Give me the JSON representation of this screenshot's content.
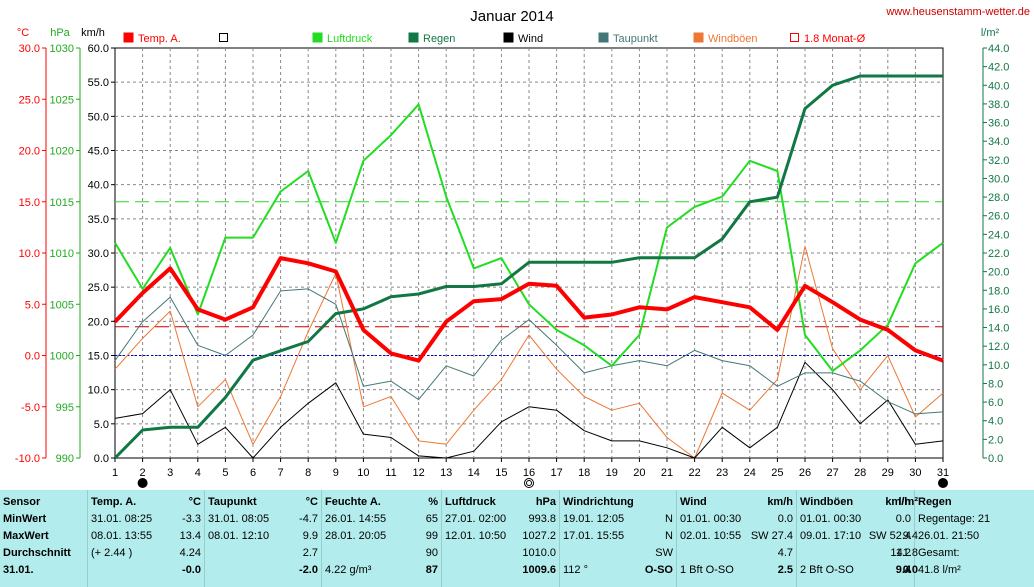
{
  "chart_data": {
    "type": "line",
    "title": "Januar 2014",
    "watermark": "www.heusenstamm-wetter.de",
    "axes": {
      "temp": {
        "unit": "°C",
        "range": [
          -10,
          30
        ],
        "ticks": [
          "30.0",
          "25.0",
          "20.0",
          "15.0",
          "10.0",
          "5.0",
          "0.0",
          "-5.0",
          "-10.0"
        ]
      },
      "pressure": {
        "unit": "hPa",
        "range": [
          990,
          1030
        ],
        "ticks": [
          "1030",
          "1025",
          "1020",
          "1015",
          "1010",
          "1005",
          "1000",
          "995",
          "990"
        ]
      },
      "wind": {
        "unit": "km/h",
        "range": [
          0,
          60
        ],
        "ticks": [
          "60.0",
          "55.0",
          "50.0",
          "45.0",
          "40.0",
          "35.0",
          "30.0",
          "25.0",
          "20.0",
          "15.0",
          "10.0",
          "5.0",
          "0.0"
        ]
      },
      "rain": {
        "unit": "l/m²",
        "range": [
          0,
          44
        ],
        "ticks": [
          "44.0",
          "42.0",
          "40.0",
          "38.0",
          "36.0",
          "34.0",
          "32.0",
          "30.0",
          "28.0",
          "26.0",
          "24.0",
          "22.0",
          "20.0",
          "18.0",
          "16.0",
          "14.0",
          "12.0",
          "10.0",
          "8.0",
          "6.0",
          "4.0",
          "2.0",
          "0.0"
        ]
      }
    },
    "x": [
      "1",
      "2",
      "3",
      "4",
      "5",
      "6",
      "7",
      "8",
      "9",
      "10",
      "11",
      "12",
      "13",
      "14",
      "15",
      "16",
      "17",
      "18",
      "19",
      "20",
      "21",
      "22",
      "23",
      "24",
      "25",
      "26",
      "27",
      "28",
      "29",
      "30",
      "31"
    ],
    "grid": true,
    "legend": [
      {
        "name": "Temp. A.",
        "color": "#ff0000",
        "style": "filled"
      },
      {
        "name": "",
        "color": "#000000",
        "style": "outline"
      },
      {
        "name": "Luftdruck",
        "color": "#22dd22",
        "style": "filled"
      },
      {
        "name": "Regen",
        "color": "#117744",
        "style": "filled"
      },
      {
        "name": "Wind",
        "color": "#000000",
        "style": "filled"
      },
      {
        "name": "Taupunkt",
        "color": "#447777",
        "style": "filled"
      },
      {
        "name": "Windböen",
        "color": "#ee7733",
        "style": "filled"
      },
      {
        "name": "1.8 Monat-Ø",
        "color": "#ff0000",
        "style": "outline"
      }
    ],
    "series": [
      {
        "name": "Temp. A.",
        "axis": "temp",
        "color": "#ff0000",
        "width": 4,
        "values": [
          3.3,
          6.1,
          8.5,
          4.5,
          3.5,
          4.7,
          9.5,
          9.0,
          8.2,
          2.5,
          0.2,
          -0.5,
          3.3,
          5.3,
          5.5,
          7.0,
          6.8,
          3.7,
          4.0,
          4.7,
          4.5,
          5.7,
          5.2,
          4.7,
          2.5,
          6.8,
          5.2,
          3.5,
          2.5,
          0.5,
          -0.5
        ]
      },
      {
        "name": "Luftdruck",
        "axis": "pressure",
        "color": "#22dd22",
        "width": 2,
        "values": [
          1011.0,
          1006.5,
          1010.5,
          1004.0,
          1011.5,
          1011.5,
          1016.0,
          1018.0,
          1011.0,
          1019.0,
          1021.5,
          1024.5,
          1015.5,
          1008.5,
          1009.5,
          1005.0,
          1002.5,
          1001.0,
          999.0,
          1002.0,
          1012.5,
          1014.5,
          1015.5,
          1019.0,
          1018.0,
          1002.0,
          998.5,
          1000.5,
          1003.0,
          1009.0,
          1011.0
        ]
      },
      {
        "name": "Regen",
        "axis": "rain",
        "color": "#117744",
        "width": 3,
        "values": [
          0.0,
          3.0,
          3.3,
          3.3,
          6.5,
          10.5,
          11.5,
          12.5,
          15.5,
          16.0,
          17.3,
          17.6,
          18.4,
          18.4,
          18.7,
          21.0,
          21.0,
          21.0,
          21.0,
          21.5,
          21.5,
          21.5,
          23.5,
          27.5,
          28.0,
          37.5,
          40.0,
          41.0,
          41.0,
          41.0,
          41.0
        ]
      },
      {
        "name": "Wind",
        "axis": "wind",
        "color": "#000000",
        "width": 1,
        "values": [
          5.8,
          6.5,
          10.0,
          2.0,
          4.5,
          0.0,
          4.5,
          8.0,
          11.0,
          3.5,
          3.0,
          0.3,
          0.0,
          1.0,
          5.3,
          7.5,
          7.0,
          4.0,
          2.5,
          2.5,
          1.5,
          0.0,
          4.5,
          1.5,
          4.5,
          14.0,
          10.0,
          5.0,
          8.5,
          2.0,
          2.5
        ]
      },
      {
        "name": "Taupunkt",
        "axis": "temp",
        "color": "#447777",
        "width": 1,
        "values": [
          -0.5,
          3.3,
          5.7,
          1.0,
          0.0,
          2.0,
          6.3,
          6.5,
          5.0,
          -3.0,
          -2.5,
          -4.3,
          -1.0,
          -2.0,
          1.5,
          3.5,
          1.0,
          -1.7,
          -1.0,
          -0.5,
          -1.0,
          0.5,
          -0.5,
          -1.0,
          -3.0,
          -1.7,
          -1.7,
          -2.5,
          -4.5,
          -5.7,
          -5.5
        ]
      },
      {
        "name": "Windböen",
        "axis": "wind",
        "color": "#ee7733",
        "width": 1,
        "values": [
          13.0,
          17.5,
          21.5,
          7.5,
          11.5,
          2.0,
          9.0,
          18.5,
          27.0,
          7.5,
          9.0,
          2.5,
          2.0,
          7.0,
          11.5,
          18.0,
          13.0,
          9.0,
          7.0,
          8.0,
          3.0,
          0.0,
          9.5,
          7.0,
          11.5,
          31.0,
          16.0,
          10.0,
          15.0,
          6.0,
          9.5
        ]
      }
    ],
    "reference_lines": [
      {
        "name": "1.8 Monat-Ø",
        "axis": "temp",
        "value": 2.8,
        "color": "#cc0000",
        "dash": "14,6"
      },
      {
        "name": "pressure-reference",
        "axis": "pressure",
        "value": 1015,
        "color": "#22dd22",
        "dash": "14,6"
      },
      {
        "name": "zero-line",
        "axis": "temp",
        "value": 0,
        "color": "#0000cc",
        "dash": "2,2"
      }
    ],
    "moon_markers": [
      {
        "day": 2,
        "phase": "new"
      },
      {
        "day": 16,
        "phase": "full"
      },
      {
        "day": 31,
        "phase": "new"
      }
    ]
  },
  "table": {
    "row_labels": [
      "Sensor",
      "MinWert",
      "MaxWert",
      "Durchschnitt",
      "31.01."
    ],
    "columns": [
      {
        "title": "Temp. A.",
        "unit": "°C",
        "rows": [
          [
            "31.01.  08:25",
            "-3.3"
          ],
          [
            "08.01.  13:55",
            "13.4"
          ],
          [
            "(+ 2.44 )",
            "4.24"
          ],
          [
            "",
            "-0.0"
          ]
        ]
      },
      {
        "title": "Taupunkt",
        "unit": "°C",
        "rows": [
          [
            "31.01.  08:05",
            "-4.7"
          ],
          [
            "08.01.  12:10",
            "9.9"
          ],
          [
            "",
            "2.7"
          ],
          [
            "",
            "-2.0"
          ]
        ]
      },
      {
        "title": "Feuchte A.",
        "unit": "%",
        "rows": [
          [
            "26.01.  14:55",
            "65"
          ],
          [
            "28.01.  20:05",
            "99"
          ],
          [
            "",
            "90"
          ],
          [
            "4.22 g/m³",
            "87"
          ]
        ]
      },
      {
        "title": "Luftdruck",
        "unit": "hPa",
        "rows": [
          [
            "27.01.  02:00",
            "993.8"
          ],
          [
            "12.01.  10:50",
            "1027.2"
          ],
          [
            "",
            "1010.0"
          ],
          [
            "",
            "1009.6"
          ]
        ]
      },
      {
        "title": "Windrichtung",
        "unit": "",
        "rows": [
          [
            "19.01.  12:05",
            "N"
          ],
          [
            "17.01.  15:55",
            "N"
          ],
          [
            "",
            "SW"
          ],
          [
            "112 °",
            "O-SO"
          ]
        ]
      },
      {
        "title": "Wind",
        "unit": "km/h",
        "rows": [
          [
            "01.01.  00:30",
            "0.0"
          ],
          [
            "02.01.  10:55",
            "SW  27.4"
          ],
          [
            "",
            "4.7"
          ],
          [
            "1 Bft O-SO",
            "2.5"
          ]
        ]
      },
      {
        "title": "Windböen",
        "unit": "km/h",
        "rows": [
          [
            "01.01.  00:30",
            "0.0"
          ],
          [
            "09.01.  17:10",
            "SW  52.4"
          ],
          [
            "",
            "11.2"
          ],
          [
            "2 Bft O-SO",
            "9.4"
          ]
        ]
      },
      {
        "title": "Regen",
        "unit": "l/m²",
        "rows": [
          [
            "Regentage: 21",
            ""
          ],
          [
            "26.01.  21:50",
            "9.4"
          ],
          [
            "Gesamt:",
            "41.8"
          ],
          [
            "41.8 l/m²",
            "0.0"
          ]
        ]
      }
    ]
  }
}
